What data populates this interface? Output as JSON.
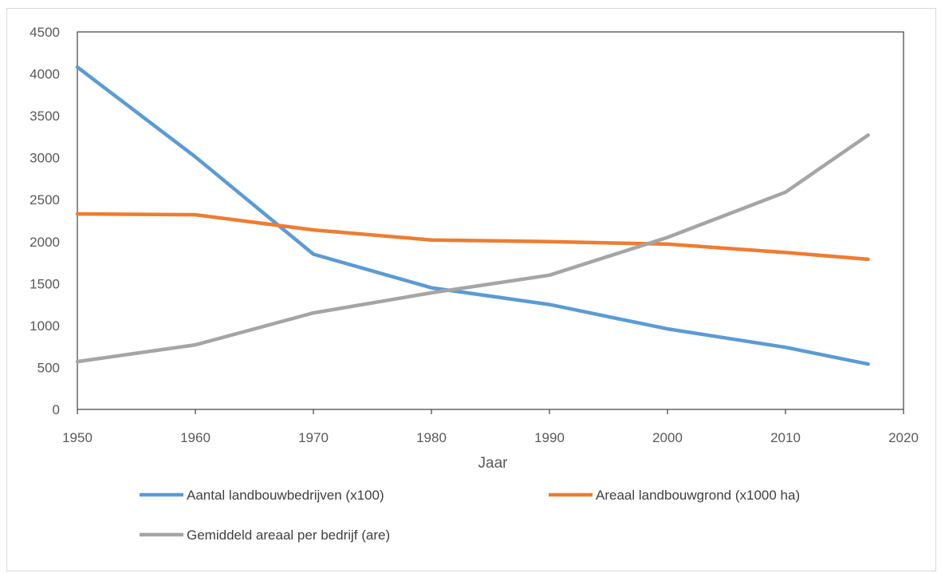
{
  "chart_data": {
    "type": "line",
    "title": "",
    "xlabel": "Jaar",
    "ylabel": "",
    "xlim": [
      1950,
      2020
    ],
    "ylim": [
      0,
      4500
    ],
    "x_ticks": [
      "1950",
      "1960",
      "1970",
      "1980",
      "1990",
      "2000",
      "2010",
      "2020"
    ],
    "y_ticks": [
      "0",
      "500",
      "1000",
      "1500",
      "2000",
      "2500",
      "3000",
      "3500",
      "4000",
      "4500"
    ],
    "grid": false,
    "legend_position": "bottom",
    "series": [
      {
        "name": "Aantal landbouwbedrijven (x100)",
        "color": "#5b9bd5",
        "x": [
          1950,
          1960,
          1970,
          1980,
          1990,
          2000,
          2010,
          2017
        ],
        "y": [
          4080,
          3010,
          1850,
          1450,
          1250,
          960,
          740,
          540
        ]
      },
      {
        "name": "Areaal landbouwgrond (x1000 ha)",
        "color": "#ed7d31",
        "x": [
          1950,
          1960,
          1970,
          1980,
          1990,
          2000,
          2010,
          2017
        ],
        "y": [
          2330,
          2320,
          2140,
          2020,
          2000,
          1970,
          1870,
          1790
        ]
      },
      {
        "name": "Gemiddeld areaal per bedrijf (are)",
        "color": "#a5a5a5",
        "x": [
          1950,
          1960,
          1970,
          1980,
          1990,
          2000,
          2010,
          2017
        ],
        "y": [
          570,
          770,
          1150,
          1390,
          1600,
          2050,
          2590,
          3270
        ]
      }
    ]
  }
}
